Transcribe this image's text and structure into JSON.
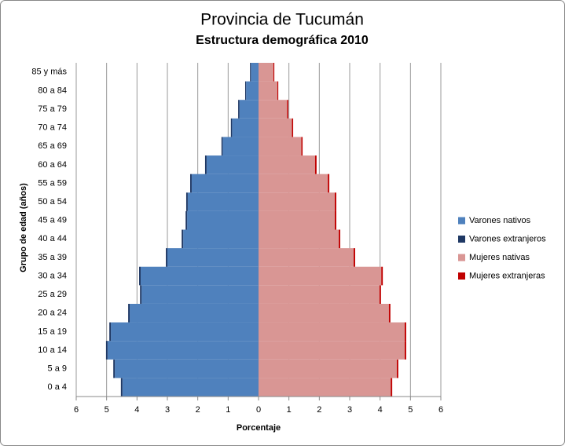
{
  "chart_data": {
    "type": "bar",
    "orientation": "horizontal",
    "stacked": true,
    "title": "Provincia de Tucumán",
    "subtitle": "Estructura demográfica 2010",
    "x_label": "Porcentaje",
    "y_label": "Grupo de edad (años)",
    "categories": [
      "0 a 4",
      "5 a 9",
      "10 a 14",
      "15 a 19",
      "20 a 24",
      "25 a 29",
      "30 a 34",
      "35 a 39",
      "40 a 44",
      "45 a 49",
      "50 a 54",
      "55 a 59",
      "60 a 64",
      "65 a 69",
      "70 a 74",
      "75 a 79",
      "80 a 84",
      "85 y más"
    ],
    "series": [
      {
        "name": "Varones nativos",
        "color": "#4f81bd",
        "values": [
          -4.48,
          -4.73,
          -4.97,
          -4.86,
          -4.24,
          -3.85,
          -3.88,
          -3.0,
          -2.48,
          -2.35,
          -2.33,
          -2.2,
          -1.71,
          -1.18,
          -0.87,
          -0.63,
          -0.41,
          -0.25
        ]
      },
      {
        "name": "Varones extranjeros",
        "color": "#1f3864",
        "values": [
          -0.05,
          -0.05,
          -0.05,
          -0.05,
          -0.05,
          -0.05,
          -0.05,
          -0.05,
          -0.05,
          -0.05,
          -0.05,
          -0.05,
          -0.05,
          -0.04,
          -0.04,
          -0.04,
          -0.03,
          -0.03
        ]
      },
      {
        "name": "Mujeres nativas",
        "color": "#d99694",
        "values": [
          4.35,
          4.55,
          4.81,
          4.81,
          4.29,
          3.98,
          4.04,
          3.13,
          2.64,
          2.51,
          2.51,
          2.28,
          1.86,
          1.41,
          1.1,
          0.94,
          0.62,
          0.49
        ]
      },
      {
        "name": "Mujeres extranjeras",
        "color": "#c00000",
        "values": [
          0.05,
          0.05,
          0.05,
          0.05,
          0.05,
          0.05,
          0.05,
          0.05,
          0.05,
          0.05,
          0.05,
          0.05,
          0.05,
          0.04,
          0.04,
          0.04,
          0.03,
          0.03
        ]
      }
    ],
    "xlim": [
      -6,
      6
    ],
    "xticks": [
      {
        "value": -6,
        "label": "6"
      },
      {
        "value": -5,
        "label": "5"
      },
      {
        "value": -4,
        "label": "4"
      },
      {
        "value": -3,
        "label": "3"
      },
      {
        "value": -2,
        "label": "2"
      },
      {
        "value": -1,
        "label": "1"
      },
      0,
      1,
      2,
      3,
      4,
      5,
      6
    ],
    "grid": true,
    "legend": "right"
  }
}
